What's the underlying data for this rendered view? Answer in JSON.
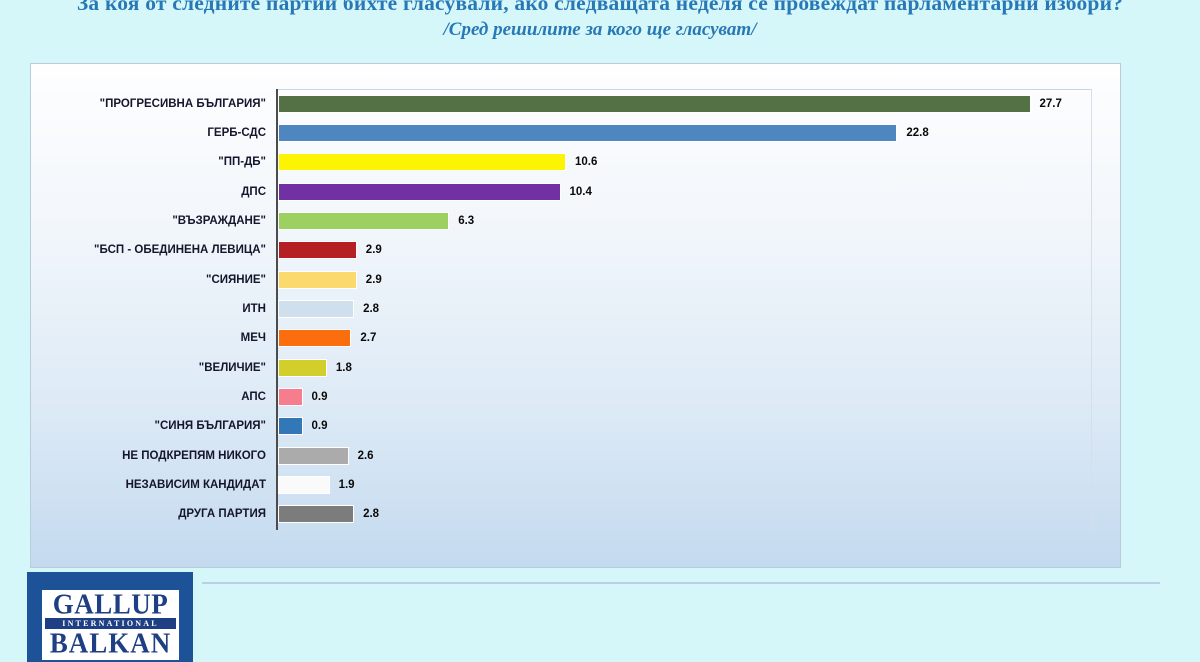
{
  "title": {
    "line1": "За коя от следните партии бихте  гласували,  ако следващата неделя се провеждат парламентарни избори?",
    "line2": "/Сред решилите за кого ще гласуват/"
  },
  "chart_data": {
    "type": "bar",
    "orientation": "horizontal",
    "title": "",
    "xlabel": "",
    "ylabel": "",
    "xlim": [
      0,
      30
    ],
    "grid": false,
    "legend": false,
    "value_labels_shown": true,
    "categories": [
      "\"ПРОГРЕСИВНА БЪЛГАРИЯ\"",
      "ГЕРБ-СДС",
      "\"ПП-ДБ\"",
      "ДПС",
      "\"ВЪЗРАЖДАНЕ\"",
      "\"БСП - ОБЕДИНЕНА ЛЕВИЦА\"",
      "\"СИЯНИЕ\"",
      "ИТН",
      "МЕЧ",
      "\"ВЕЛИЧИЕ\"",
      "АПС",
      "\"СИНЯ БЪЛГАРИЯ\"",
      "НЕ ПОДКРЕПЯМ НИКОГО",
      "НЕЗАВИСИМ КАНДИДАТ",
      "ДРУГА ПАРТИЯ"
    ],
    "values": [
      27.7,
      22.8,
      10.6,
      10.4,
      6.3,
      2.9,
      2.9,
      2.8,
      2.7,
      1.8,
      0.9,
      0.9,
      2.6,
      1.9,
      2.8
    ],
    "bar_colors": [
      "#547145",
      "#4e86c0",
      "#fdf403",
      "#7231a3",
      "#9cd161",
      "#b52025",
      "#fbd96d",
      "#cfdfee",
      "#fa6e0e",
      "#d2cf2c",
      "#f57d8e",
      "#3277b8",
      "#ababab",
      "#fafafa",
      "#7c7c7c"
    ]
  },
  "colors": {
    "page_background": "#d6f7fa",
    "title_text": "#2878b6",
    "axis_line": "#4c4c4c",
    "label_text": "#15152c",
    "value_text": "#0a0a0a"
  },
  "logo": {
    "line1": "GALLUP",
    "line2": "INTERNATIONAL",
    "line3": "BALKAN"
  }
}
